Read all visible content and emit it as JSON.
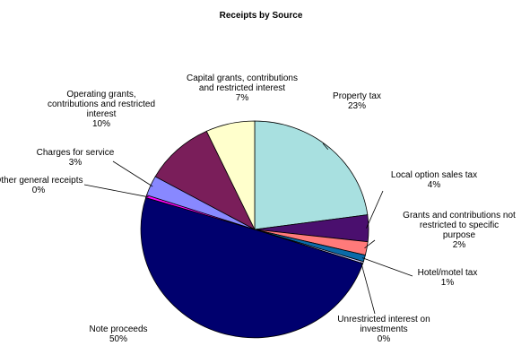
{
  "chart_data": {
    "type": "pie",
    "title": "Receipts by Source",
    "slices": [
      {
        "label": "Property tax",
        "value": 23,
        "display": "23%",
        "color": "#a8e0e0"
      },
      {
        "label": "Local option sales tax",
        "value": 4,
        "display": "4%",
        "color": "#4a0f6e"
      },
      {
        "label": "Grants and contributions not restricted to specific purpose",
        "value": 2,
        "display": "2%",
        "color": "#ff7a7a"
      },
      {
        "label": "Hotel/motel tax",
        "value": 1,
        "display": "1%",
        "color": "#0a6aa8"
      },
      {
        "label": "Unrestricted interest on investments",
        "value": 0.3,
        "display": "0%",
        "color": "#c8c8ff"
      },
      {
        "label": "Note proceeds",
        "value": 50,
        "display": "50%",
        "color": "#00006e"
      },
      {
        "label": "Other general receipts",
        "value": 0.4,
        "display": "0%",
        "color": "#ff00ff"
      },
      {
        "label": "Charges for service",
        "value": 3,
        "display": "3%",
        "color": "#8888ff"
      },
      {
        "label": "Operating grants, contributions and restricted interest",
        "value": 10,
        "display": "10%",
        "color": "#7a1e5a"
      },
      {
        "label": "Capital grants, contributions and restricted interest",
        "value": 7,
        "display": "7%",
        "color": "#ffffcc"
      }
    ]
  }
}
